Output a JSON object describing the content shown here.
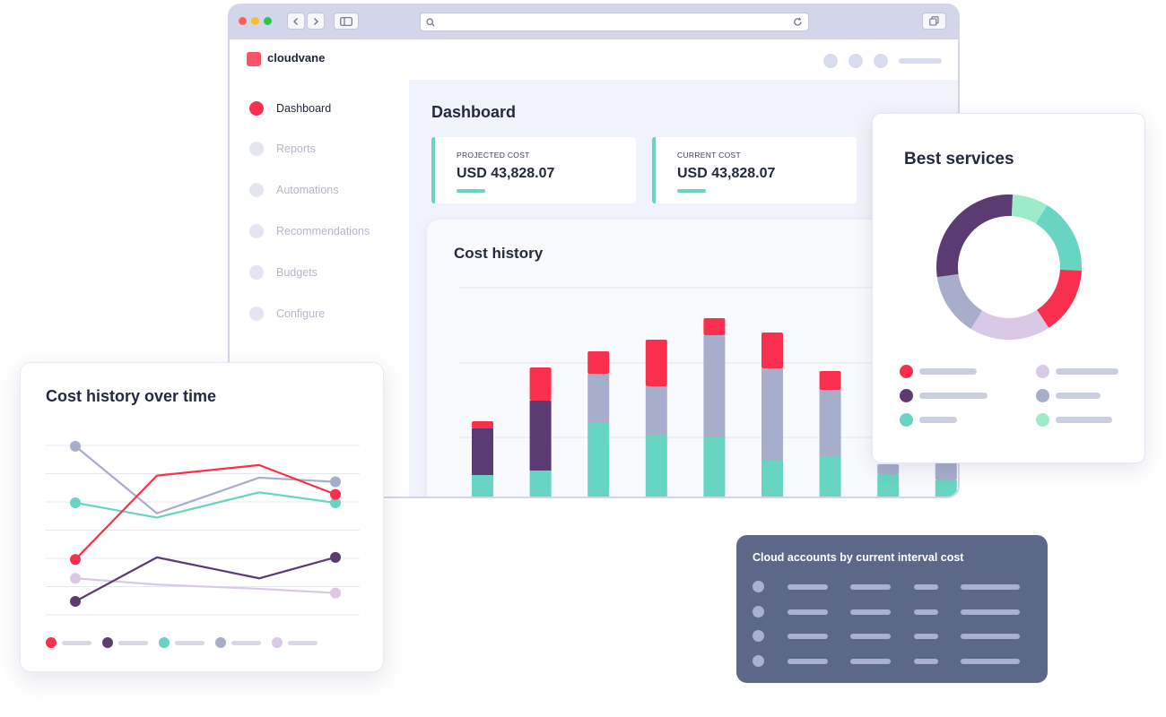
{
  "browser": {
    "url_value": "",
    "icons": [
      "back-arrow-icon",
      "forward-arrow-icon",
      "sidebar-toggle-icon",
      "search-icon",
      "reload-icon",
      "duplicate-tab-icon"
    ]
  },
  "app": {
    "name": "cloudvane",
    "brand_color": "#fb5466"
  },
  "sidebar": {
    "items": [
      {
        "label": "Dashboard",
        "active": true
      },
      {
        "label": "Reports",
        "active": false
      },
      {
        "label": "Automations",
        "active": false
      },
      {
        "label": "Recommendations",
        "active": false
      },
      {
        "label": "Budgets",
        "active": false
      },
      {
        "label": "Configure",
        "active": false
      }
    ]
  },
  "dashboard": {
    "title": "Dashboard",
    "kpis": [
      {
        "label": "PROJECTED COST",
        "value": "USD 43,828.07"
      },
      {
        "label": "CURRENT COST",
        "value": "USD 43,828.07"
      }
    ]
  },
  "colors": {
    "red": "#fa2f4d",
    "purple": "#5c3b72",
    "grayblue": "#a6aecb",
    "teal": "#67d5c1",
    "lavender": "#d9c8e6",
    "mint": "#9decc9"
  },
  "cost_history": {
    "title": "Cost history",
    "chart_data": {
      "type": "bar",
      "stacked": true,
      "grid": true,
      "bars": [
        {
          "teal": 28,
          "purple": 52,
          "grayblue": 0,
          "red": 8
        },
        {
          "teal": 33,
          "purple": 78,
          "grayblue": 0,
          "red": 37
        },
        {
          "teal": 87,
          "purple": 0,
          "grayblue": 54,
          "red": 25
        },
        {
          "teal": 73,
          "purple": 0,
          "grayblue": 54,
          "red": 52
        },
        {
          "teal": 70,
          "purple": 0,
          "grayblue": 114,
          "red": 19
        },
        {
          "teal": 44,
          "purple": 0,
          "grayblue": 103,
          "red": 40
        },
        {
          "teal": 49,
          "purple": 0,
          "grayblue": 74,
          "red": 21
        },
        {
          "teal": 28,
          "purple": 0,
          "grayblue": 12,
          "red": 0
        },
        {
          "teal": 22,
          "purple": 0,
          "grayblue": 20,
          "red": 0
        }
      ]
    }
  },
  "best_services": {
    "title": "Best services",
    "chart_data": {
      "type": "pie",
      "donut": true,
      "slices": [
        {
          "color": "mint",
          "value": 8
        },
        {
          "color": "teal",
          "value": 17
        },
        {
          "color": "red",
          "value": 15
        },
        {
          "color": "lavender",
          "value": 18
        },
        {
          "color": "grayblue",
          "value": 14
        },
        {
          "color": "purple",
          "value": 28
        }
      ]
    },
    "legend": [
      {
        "color": "red"
      },
      {
        "color": "lavender"
      },
      {
        "color": "purple"
      },
      {
        "color": "grayblue"
      },
      {
        "color": "teal"
      },
      {
        "color": "mint"
      }
    ]
  },
  "cost_over_time": {
    "title": "Cost history over time",
    "chart_data": {
      "type": "line",
      "grid": true,
      "series": [
        {
          "color": "grayblue",
          "values": [
            6.2,
            3.0,
            4.7,
            4.5
          ]
        },
        {
          "color": "red",
          "values": [
            0.8,
            4.8,
            5.3,
            3.9
          ]
        },
        {
          "color": "teal",
          "values": [
            3.5,
            2.8,
            4.0,
            3.5
          ]
        },
        {
          "color": "purple",
          "values": [
            -1.2,
            0.9,
            -0.1,
            0.9
          ]
        },
        {
          "color": "lavender",
          "values": [
            -0.1,
            -0.4,
            -0.6,
            -0.8
          ]
        }
      ],
      "legend": [
        "red",
        "purple",
        "teal",
        "grayblue",
        "lavender"
      ]
    }
  },
  "accounts": {
    "title": "Cloud accounts by current interval cost",
    "rows": 4
  }
}
